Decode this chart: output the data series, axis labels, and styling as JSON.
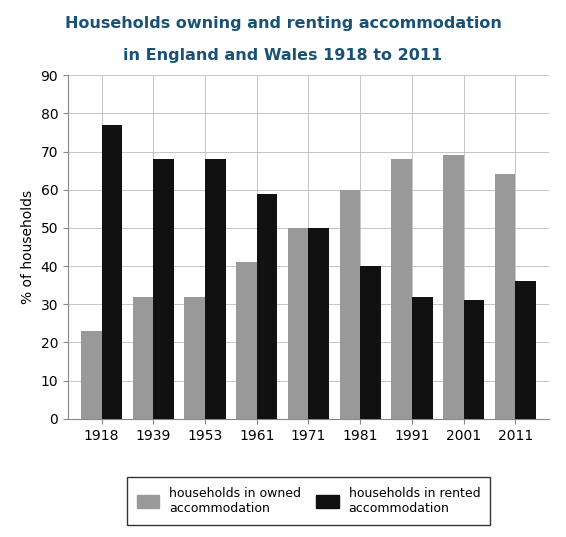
{
  "title_line1": "Households owning and renting accommodation",
  "title_line2": "in England and Wales 1918 to 2011",
  "title_color": "#1a5276",
  "years": [
    "1918",
    "1939",
    "1953",
    "1961",
    "1971",
    "1981",
    "1991",
    "2001",
    "2011"
  ],
  "owned": [
    23,
    32,
    32,
    41,
    50,
    60,
    68,
    69,
    64
  ],
  "rented": [
    77,
    68,
    68,
    59,
    50,
    40,
    32,
    31,
    36
  ],
  "owned_color": "#999999",
  "rented_color": "#111111",
  "ylabel": "% of households",
  "ylim": [
    0,
    90
  ],
  "yticks": [
    0,
    10,
    20,
    30,
    40,
    50,
    60,
    70,
    80,
    90
  ],
  "bar_width": 0.4,
  "legend_owned": "households in owned\naccommodation",
  "legend_rented": "households in rented\naccommodation",
  "background_color": "#FFFFFF",
  "grid_color": "#BBBBBB"
}
